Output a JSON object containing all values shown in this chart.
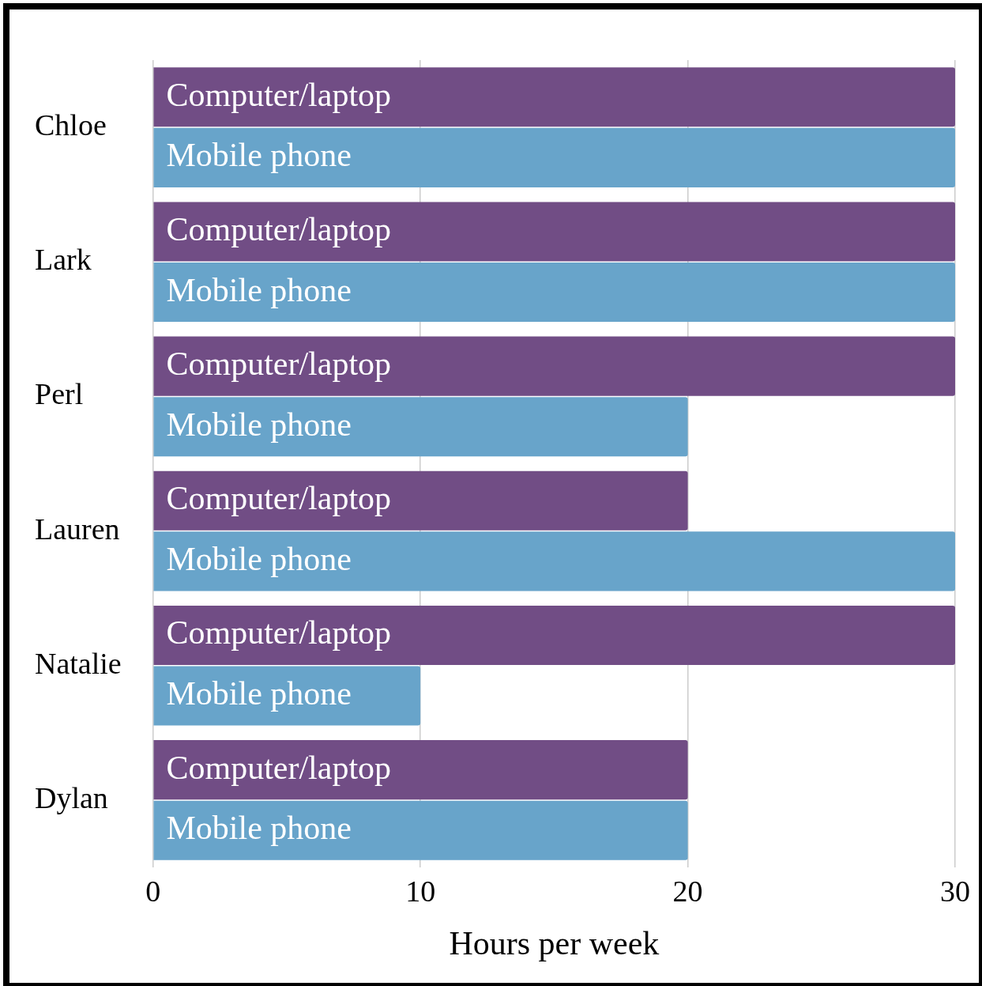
{
  "chart_data": {
    "type": "bar",
    "orientation": "horizontal",
    "xlabel": "Hours per week",
    "categories": [
      "Chloe",
      "Lark",
      "Perl",
      "Lauren",
      "Natalie",
      "Dylan"
    ],
    "series": [
      {
        "name": "Computer/laptop",
        "color": "#714d85",
        "values": [
          30,
          30,
          30,
          20,
          30,
          20
        ]
      },
      {
        "name": "Mobile phone",
        "color": "#68a4ca",
        "values": [
          30,
          30,
          20,
          30,
          10,
          20
        ]
      }
    ],
    "xlim": [
      0,
      30
    ],
    "xticks": [
      0,
      10,
      20,
      30
    ],
    "grid": "x",
    "legend": false
  }
}
